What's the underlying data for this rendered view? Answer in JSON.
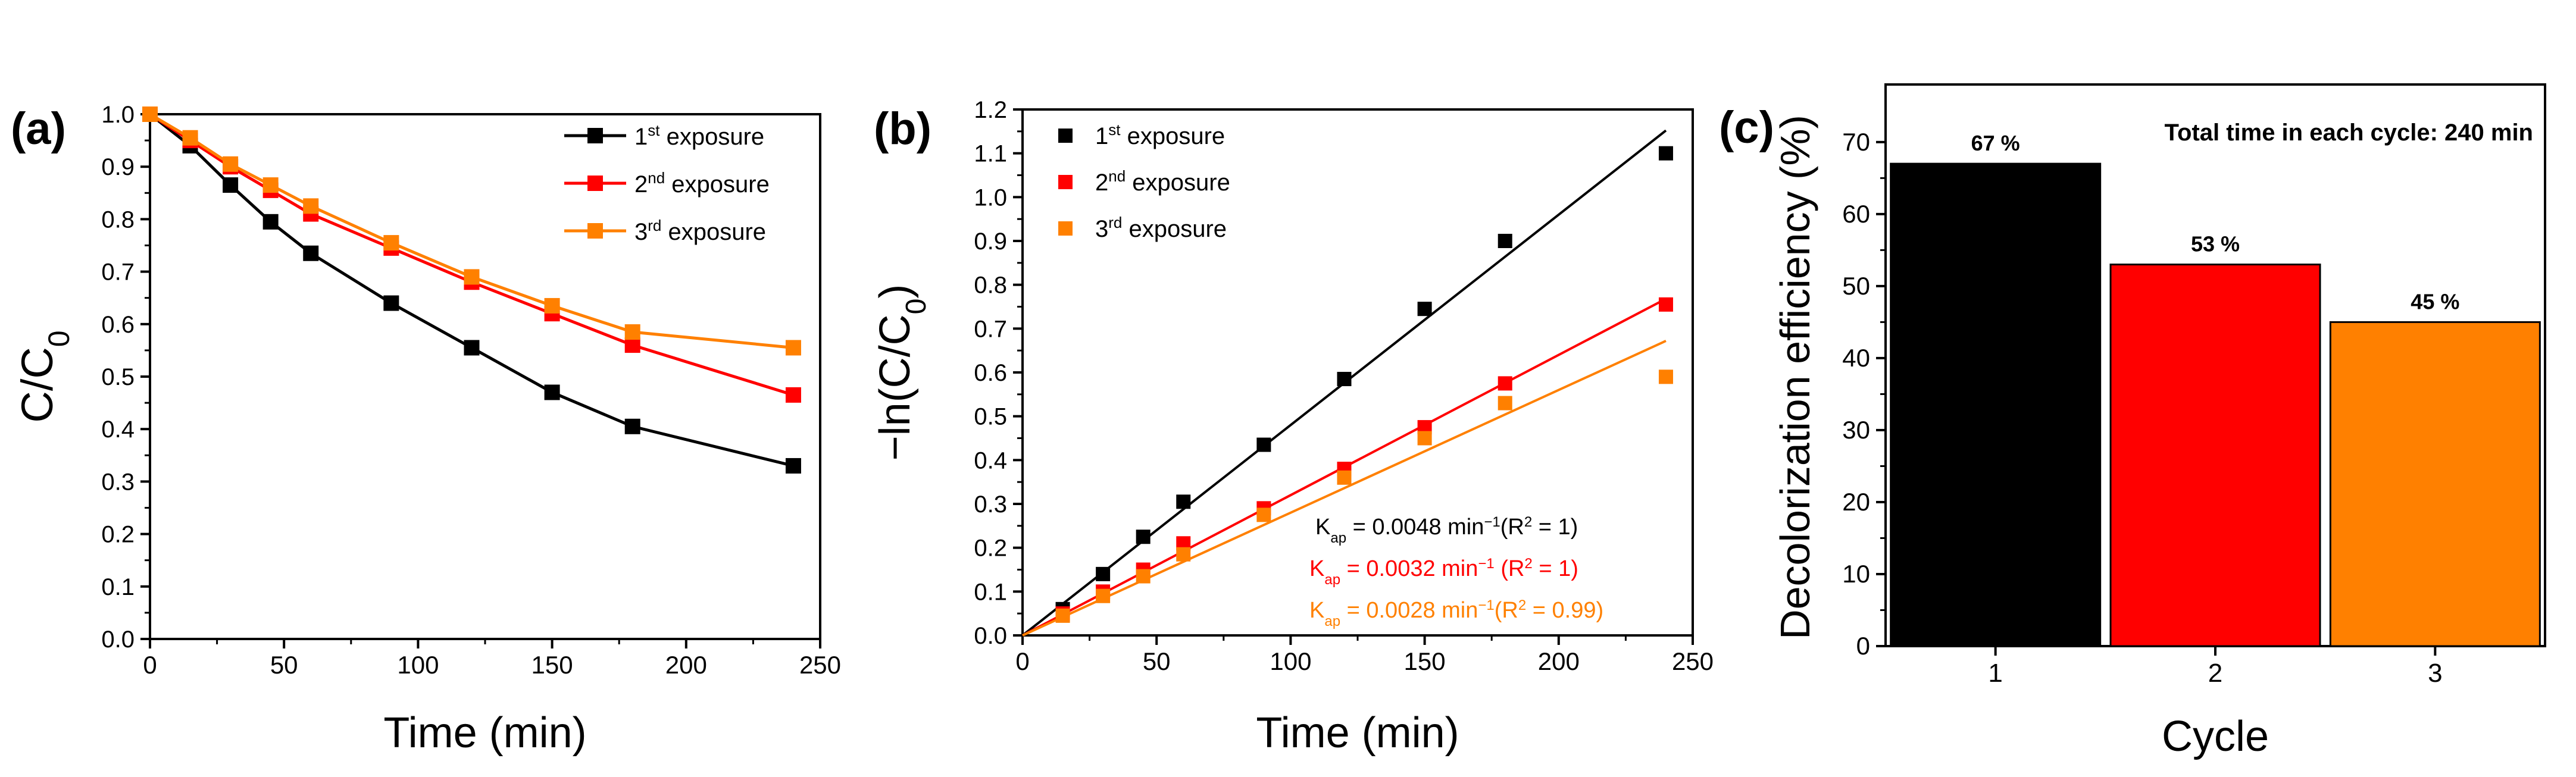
{
  "colors": {
    "black": "#000000",
    "red": "#ff0000",
    "orange": "#ff8000",
    "axis": "#000000"
  },
  "chart_data": [
    {
      "panel": "(a)",
      "type": "line",
      "xlabel": "Time (min)",
      "ylabel_main": "C/C",
      "ylabel_sub": "0",
      "xlim": [
        0,
        250
      ],
      "ylim": [
        0,
        1.0
      ],
      "xticks": [
        "0",
        "50",
        "100",
        "150",
        "200",
        "250"
      ],
      "yticks": [
        "0.0",
        "0.1",
        "0.2",
        "0.3",
        "0.4",
        "0.5",
        "0.6",
        "0.7",
        "0.8",
        "0.9",
        "1.0"
      ],
      "legend_position": "top-right",
      "series": [
        {
          "name": "1st exposure",
          "legend_pre": "1",
          "legend_sup": "st",
          "legend_post": " exposure",
          "color": "#000000",
          "x": [
            0,
            15,
            30,
            45,
            60,
            90,
            120,
            150,
            180,
            240
          ],
          "y": [
            1.0,
            0.94,
            0.865,
            0.795,
            0.735,
            0.64,
            0.555,
            0.47,
            0.405,
            0.33
          ]
        },
        {
          "name": "2nd exposure",
          "legend_pre": "2",
          "legend_sup": "nd",
          "legend_post": " exposure",
          "color": "#ff0000",
          "x": [
            0,
            15,
            30,
            45,
            60,
            90,
            120,
            150,
            180,
            240
          ],
          "y": [
            1.0,
            0.95,
            0.9,
            0.855,
            0.81,
            0.745,
            0.68,
            0.62,
            0.56,
            0.465
          ]
        },
        {
          "name": "3rd exposure",
          "legend_pre": "3",
          "legend_sup": "rd",
          "legend_post": " exposure",
          "color": "#ff8000",
          "x": [
            0,
            15,
            30,
            45,
            60,
            90,
            120,
            150,
            180,
            240
          ],
          "y": [
            1.0,
            0.955,
            0.905,
            0.865,
            0.825,
            0.755,
            0.69,
            0.635,
            0.585,
            0.555
          ]
        }
      ]
    },
    {
      "panel": "(b)",
      "type": "scatter",
      "xlabel": "Time (min)",
      "ylabel_main": "−ln(C/C",
      "ylabel_sub": "0",
      "ylabel_close": ")",
      "xlim": [
        0,
        250
      ],
      "ylim": [
        0,
        1.2
      ],
      "xticks": [
        "0",
        "50",
        "100",
        "150",
        "200",
        "250"
      ],
      "yticks": [
        "0.0",
        "0.1",
        "0.2",
        "0.3",
        "0.4",
        "0.5",
        "0.6",
        "0.7",
        "0.8",
        "0.9",
        "1.0",
        "1.1",
        "1.2"
      ],
      "legend_position": "top-left",
      "series": [
        {
          "name": "1st exposure",
          "legend_pre": "1",
          "legend_sup": "st",
          "legend_post": " exposure",
          "color": "#000000",
          "x": [
            15,
            30,
            45,
            60,
            90,
            120,
            150,
            180,
            240
          ],
          "y": [
            0.06,
            0.14,
            0.225,
            0.305,
            0.435,
            0.585,
            0.745,
            0.9,
            1.1
          ],
          "fit_slope": 0.0048
        },
        {
          "name": "2nd exposure",
          "legend_pre": "2",
          "legend_sup": "nd",
          "legend_post": " exposure",
          "color": "#ff0000",
          "x": [
            15,
            30,
            45,
            60,
            90,
            120,
            150,
            180,
            240
          ],
          "y": [
            0.05,
            0.1,
            0.15,
            0.21,
            0.29,
            0.38,
            0.475,
            0.575,
            0.755
          ],
          "fit_slope": 0.0032
        },
        {
          "name": "3rd exposure",
          "legend_pre": "3",
          "legend_sup": "rd",
          "legend_post": " exposure",
          "color": "#ff8000",
          "x": [
            15,
            30,
            45,
            60,
            90,
            120,
            150,
            180,
            240
          ],
          "y": [
            0.045,
            0.09,
            0.135,
            0.185,
            0.275,
            0.36,
            0.45,
            0.53,
            0.59
          ],
          "fit_slope": 0.0028
        }
      ],
      "annotations": [
        {
          "k": "K",
          "sub": "ap",
          "mid": " = 0.0048 min",
          "sup": "−1",
          "r_pre": "(R",
          "r_sup": "2",
          "r_post": " = 1)",
          "color": "#000000"
        },
        {
          "k": "K",
          "sub": "ap",
          "mid": " = 0.0032 min",
          "sup": "−1",
          "r_pre": " (R",
          "r_sup": "2",
          "r_post": " = 1)",
          "color": "#ff0000"
        },
        {
          "k": "K",
          "sub": "ap",
          "mid": " = 0.0028 min",
          "sup": "−1",
          "r_pre": "(R",
          "r_sup": "2",
          "r_post": " = 0.99)",
          "color": "#ff8000"
        }
      ]
    },
    {
      "panel": "(c)",
      "type": "bar",
      "xlabel": "Cycle",
      "ylabel": "Decolorization efficiency (%)",
      "categories": [
        "1",
        "2",
        "3"
      ],
      "values": [
        67,
        53,
        45
      ],
      "labels": [
        "67 %",
        "53 %",
        "45 %"
      ],
      "colors": [
        "#000000",
        "#ff0000",
        "#ff8000"
      ],
      "ylim": [
        0,
        78
      ],
      "yticks": [
        "0",
        "10",
        "20",
        "30",
        "40",
        "50",
        "60",
        "70"
      ],
      "annotation": "Total time in each cycle: 240 min"
    }
  ]
}
